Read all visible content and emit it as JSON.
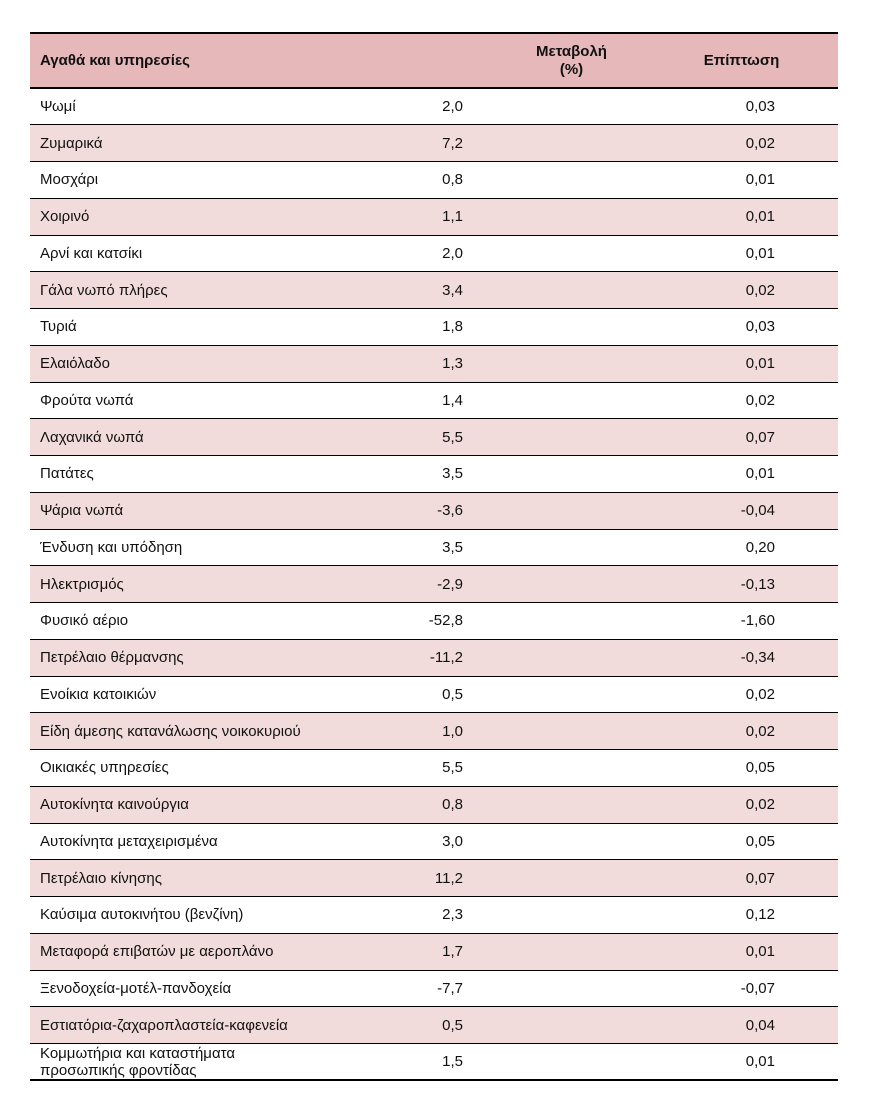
{
  "table": {
    "header": [
      "Αγαθά και υπηρεσίες",
      "Μεταβολή (%)",
      "Επίπτωση"
    ],
    "rows": [
      [
        "Ψωμί",
        "2,0",
        "0,03"
      ],
      [
        "Ζυμαρικά",
        "7,2",
        "0,02"
      ],
      [
        "Μοσχάρι",
        "0,8",
        "0,01"
      ],
      [
        "Χοιρινό",
        "1,1",
        "0,01"
      ],
      [
        "Αρνί και κατσίκι",
        "2,0",
        "0,01"
      ],
      [
        "Γάλα νωπό πλήρες",
        "3,4",
        "0,02"
      ],
      [
        "Τυριά",
        "1,8",
        "0,03"
      ],
      [
        "Ελαιόλαδο",
        "1,3",
        "0,01"
      ],
      [
        "Φρούτα νωπά",
        "1,4",
        "0,02"
      ],
      [
        "Λαχανικά νωπά",
        "5,5",
        "0,07"
      ],
      [
        "Πατάτες",
        "3,5",
        "0,01"
      ],
      [
        "Ψάρια νωπά",
        "-3,6",
        "-0,04"
      ],
      [
        "Ένδυση και υπόδηση",
        "3,5",
        "0,20"
      ],
      [
        "Ηλεκτρισμός",
        "-2,9",
        "-0,13"
      ],
      [
        "Φυσικό αέριο",
        "-52,8",
        "-1,60"
      ],
      [
        "Πετρέλαιο θέρμανσης",
        "-11,2",
        "-0,34"
      ],
      [
        "Ενοίκια κατοικιών",
        "0,5",
        "0,02"
      ],
      [
        "Είδη άμεσης κατανάλωσης νοικοκυριού",
        "1,0",
        "0,02"
      ],
      [
        "Οικιακές υπηρεσίες",
        "5,5",
        "0,05"
      ],
      [
        "Αυτοκίνητα καινούργια",
        "0,8",
        "0,02"
      ],
      [
        "Αυτοκίνητα μεταχειρισμένα",
        "3,0",
        "0,05"
      ],
      [
        "Πετρέλαιο κίνησης",
        "11,2",
        "0,07"
      ],
      [
        "Καύσιμα αυτοκινήτου (βενζίνη)",
        "2,3",
        "0,12"
      ],
      [
        "Μεταφορά επιβατών με αεροπλάνο",
        "1,7",
        "0,01"
      ],
      [
        "Ξενοδοχεία-μοτέλ-πανδοχεία",
        "-7,7",
        "-0,07"
      ],
      [
        "Εστιατόρια-ζαχαροπλαστεία-καφενεία",
        "0,5",
        "0,04"
      ],
      [
        "Κομμωτήρια και καταστήματα προσωπικής φροντίδας",
        "1,5",
        "0,01"
      ]
    ]
  }
}
